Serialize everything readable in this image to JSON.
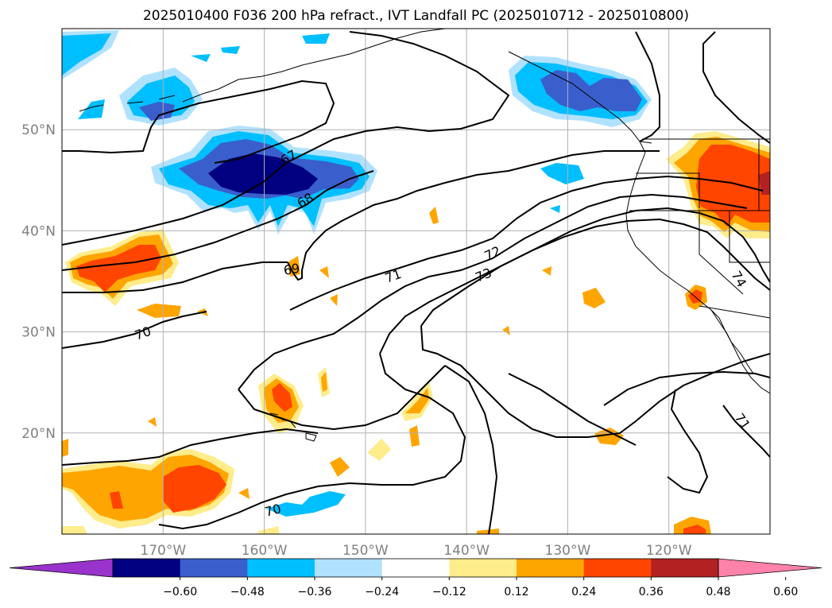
{
  "title": "2025010400 F036 200 hPa refract., IVT Landfall PC (2025010712 - 2025010800)",
  "map": {
    "projection": "PlateCarree",
    "lon_range": [
      -180,
      -110
    ],
    "lat_range": [
      10,
      60
    ],
    "gridlines": true,
    "coastlines": true,
    "state_borders": true,
    "lat_labels": [
      "50°N",
      "40°N",
      "30°N",
      "20°N"
    ],
    "lat_values": [
      50,
      40,
      30,
      20
    ],
    "lon_labels": [
      "170°W",
      "160°W",
      "150°W",
      "140°W",
      "130°W",
      "120°W"
    ],
    "lon_values": [
      -170,
      -160,
      -150,
      -140,
      -130,
      -120
    ],
    "label_color": "#808080",
    "fields": {
      "filled": "IVT Landfall PC",
      "contours": "200 hPa refractivity",
      "contour_labels": [
        "67",
        "68",
        "69",
        "70",
        "70",
        "71",
        "71",
        "72",
        "73",
        "74"
      ]
    }
  },
  "colorbar": {
    "orientation": "horizontal",
    "extend": "both",
    "ticks": [
      "−0.60",
      "−0.48",
      "−0.36",
      "−0.24",
      "−0.12",
      "0.12",
      "0.24",
      "0.36",
      "0.48",
      "0.60"
    ],
    "bins": [
      {
        "color": "#9933cc"
      },
      {
        "color": "#000080"
      },
      {
        "color": "#3a5fcd"
      },
      {
        "color": "#00bfff"
      },
      {
        "color": "#b0e2ff"
      },
      {
        "color": "#ffffff"
      },
      {
        "color": "#ffec8b"
      },
      {
        "color": "#ffa500"
      },
      {
        "color": "#ff4500"
      },
      {
        "color": "#b22222"
      },
      {
        "color": "#ff82ab"
      }
    ]
  }
}
